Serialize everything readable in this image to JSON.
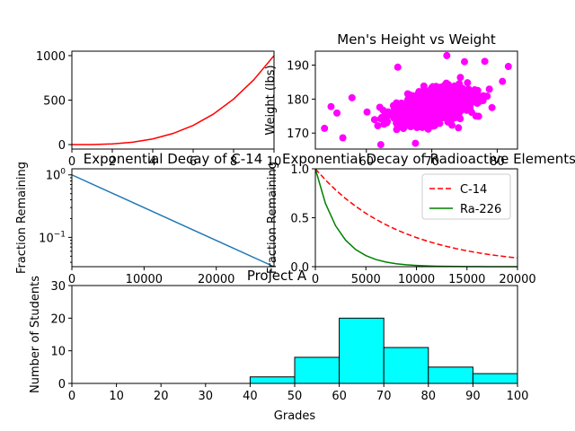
{
  "chart_data": [
    {
      "type": "line",
      "title": "",
      "xlabel": "",
      "ylabel": "",
      "x": [
        0,
        1,
        2,
        3,
        4,
        5,
        6,
        7,
        8,
        9,
        10
      ],
      "series": [
        {
          "values": [
            0,
            1,
            8,
            27,
            64,
            125,
            216,
            343,
            512,
            729,
            1000
          ],
          "color": "#ff0000"
        }
      ],
      "xlim": [
        0,
        10
      ],
      "ylim": [
        -50,
        1050
      ],
      "xticks": [
        "0",
        "2",
        "4",
        "6",
        "8",
        "10"
      ],
      "yticks": [
        "0",
        "500",
        "1000"
      ],
      "grid": false
    },
    {
      "type": "scatter",
      "title": "Men's Height vs Weight",
      "xlabel": "",
      "ylabel": "Weight (lbs)",
      "color": "#ff00ff",
      "x_range": [
        53.6,
        81.7
      ],
      "y_range": [
        166.6,
        192.8
      ],
      "point_count": 1000,
      "trend": "positive correlation, dense cloud centered near (70, 178)",
      "sample_points": [
        {
          "x": 53.6,
          "y": 171.4
        },
        {
          "x": 54.6,
          "y": 177.8
        },
        {
          "x": 55.5,
          "y": 175.9
        },
        {
          "x": 56.4,
          "y": 168.6
        },
        {
          "x": 57.8,
          "y": 180.4
        },
        {
          "x": 60.1,
          "y": 176.2
        },
        {
          "x": 62.2,
          "y": 166.6
        },
        {
          "x": 64.8,
          "y": 189.4
        },
        {
          "x": 67.5,
          "y": 167.0
        },
        {
          "x": 72.3,
          "y": 192.8
        },
        {
          "x": 75.0,
          "y": 191.0
        },
        {
          "x": 78.1,
          "y": 191.1
        },
        {
          "x": 79.2,
          "y": 177.5
        },
        {
          "x": 80.8,
          "y": 185.2
        },
        {
          "x": 81.7,
          "y": 189.6
        }
      ],
      "xlim": [
        52.2,
        83.1
      ],
      "ylim": [
        165.3,
        194.1
      ],
      "xticks": [
        "60",
        "70",
        "80"
      ],
      "yticks": [
        "170",
        "180",
        "190"
      ],
      "grid": false
    },
    {
      "type": "line",
      "title": "Exponential Decay of C-14",
      "xlabel": "",
      "ylabel": "Fraction Remaining",
      "yscale": "log",
      "x": [
        0,
        28000
      ],
      "series": [
        {
          "values": [
            1.0,
            0.034
          ],
          "color": "#1f77b4"
        }
      ],
      "xlim": [
        0,
        28000
      ],
      "ylim": [
        0.034,
        1.25
      ],
      "xticks": [
        "0",
        "10000",
        "20000"
      ],
      "yticks": [
        "10^0",
        "10^-1"
      ],
      "grid": false
    },
    {
      "type": "line",
      "title": "Exponential Decay of Radioactive Elements",
      "xlabel": "",
      "ylabel": "Fraction Remaining",
      "x": [
        0,
        1000,
        2000,
        3000,
        4000,
        5000,
        6000,
        7000,
        8000,
        9000,
        10000,
        11000,
        12000,
        13000,
        14000,
        15000,
        16000,
        17000,
        18000,
        19000,
        20000
      ],
      "series": [
        {
          "name": "C-14",
          "color": "#ff0000",
          "style": "dashed",
          "values": [
            1.0,
            0.886,
            0.785,
            0.695,
            0.616,
            0.545,
            0.483,
            0.428,
            0.379,
            0.336,
            0.297,
            0.264,
            0.233,
            0.207,
            0.183,
            0.162,
            0.144,
            0.127,
            0.113,
            0.1,
            0.089
          ]
        },
        {
          "name": "Ra-226",
          "color": "#008000",
          "style": "solid",
          "values": [
            1.0,
            0.646,
            0.418,
            0.27,
            0.174,
            0.113,
            0.073,
            0.047,
            0.03,
            0.02,
            0.013,
            0.008,
            0.005,
            0.003,
            0.002,
            0.001,
            0.001,
            0.0005,
            0.0003,
            0.0002,
            0.0001
          ]
        }
      ],
      "xlim": [
        0,
        20000
      ],
      "ylim": [
        0,
        1
      ],
      "xticks": [
        "0",
        "5000",
        "10000",
        "15000",
        "20000"
      ],
      "yticks": [
        "0.0",
        "0.5",
        "1.0"
      ],
      "legend": "top-right",
      "grid": false
    },
    {
      "type": "bar",
      "title": "Project A",
      "xlabel": "Grades",
      "ylabel": "Number of Students",
      "color": "#00ffff",
      "bins": [
        [
          40,
          50
        ],
        [
          50,
          60
        ],
        [
          60,
          70
        ],
        [
          70,
          80
        ],
        [
          80,
          90
        ],
        [
          90,
          100
        ]
      ],
      "values": [
        2,
        8,
        20,
        11,
        5,
        3
      ],
      "xlim": [
        0,
        100
      ],
      "ylim": [
        0,
        30
      ],
      "xticks": [
        "0",
        "10",
        "20",
        "30",
        "40",
        "50",
        "60",
        "70",
        "80",
        "90",
        "100"
      ],
      "yticks": [
        "0",
        "10",
        "20",
        "30"
      ],
      "grid": false
    }
  ]
}
